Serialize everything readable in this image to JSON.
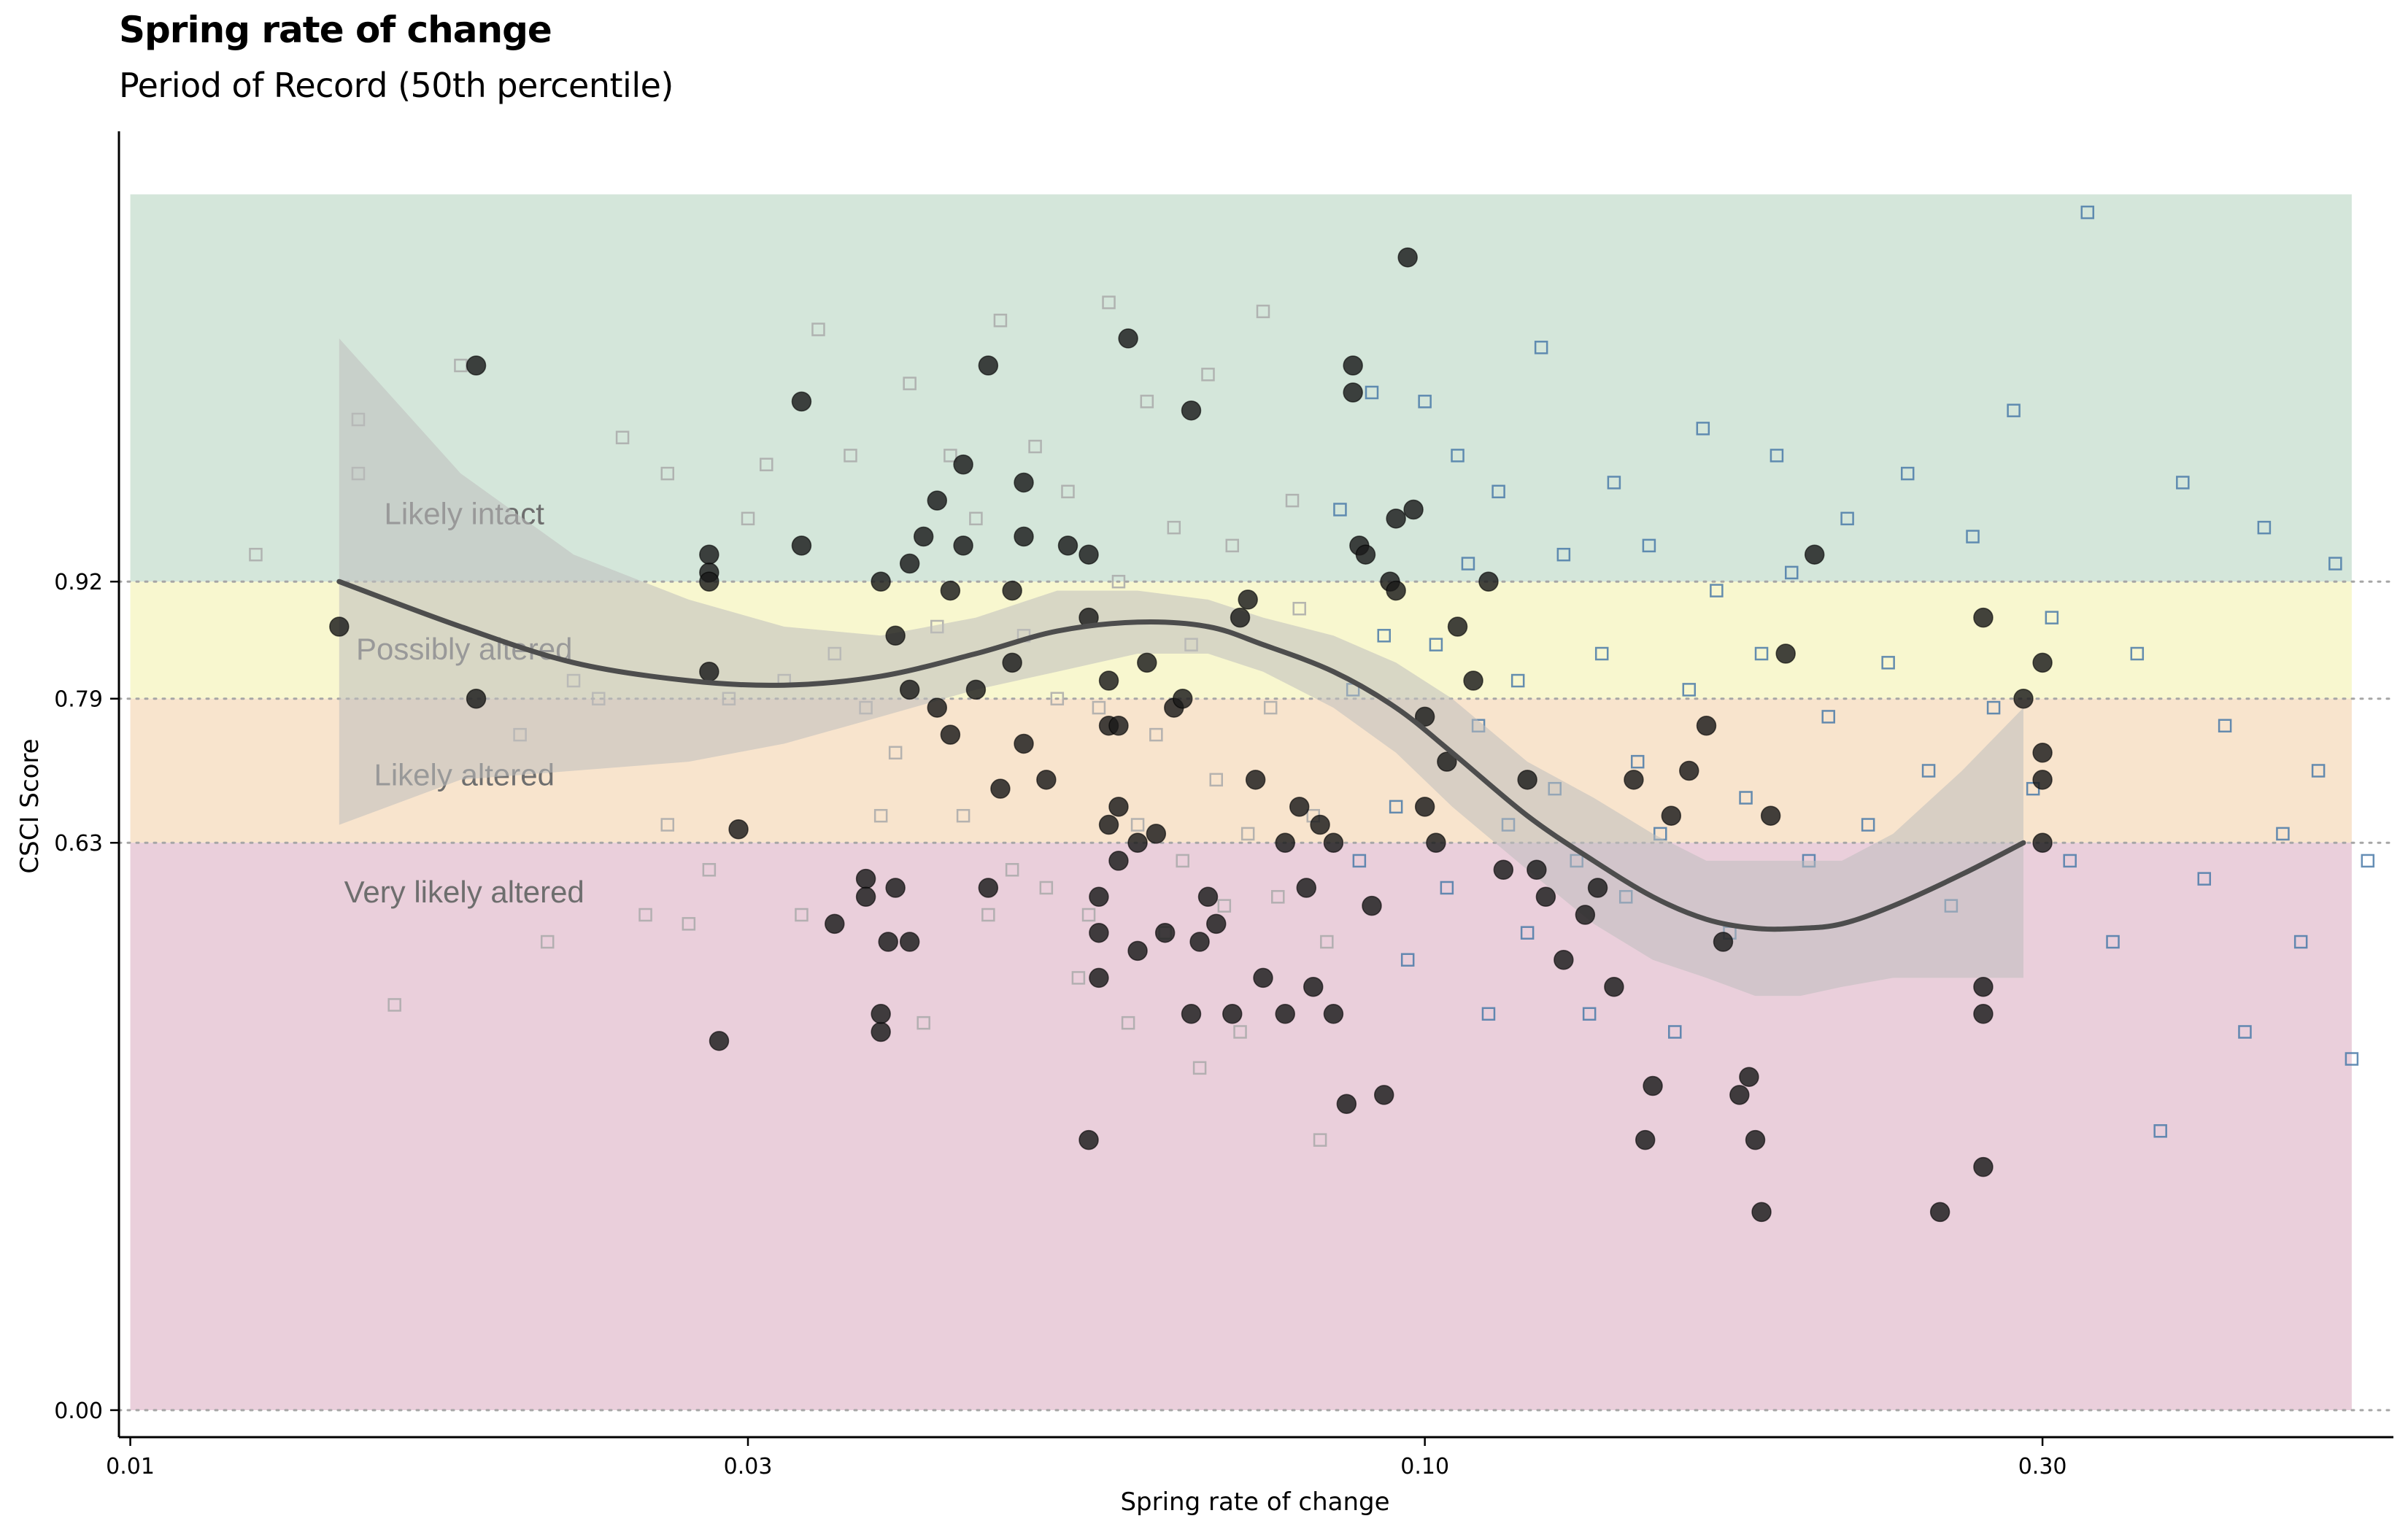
{
  "chart_data": {
    "type": "scatter",
    "title": "Spring rate of change",
    "subtitle": "Period of Record (50th percentile)",
    "xlabel": "Spring rate of change",
    "ylabel": "CSCI Score",
    "x_scale": "log10",
    "xlim": [
      0.0098,
      0.56
    ],
    "ylim": [
      -0.03,
      1.42
    ],
    "x_ticks": [
      {
        "value": 0.01,
        "label": "0.01"
      },
      {
        "value": 0.03,
        "label": "0.03"
      },
      {
        "value": 0.1,
        "label": "0.10"
      },
      {
        "value": 0.3,
        "label": "0.30"
      }
    ],
    "y_ticks": [
      {
        "value": 0.0,
        "label": "0.00"
      },
      {
        "value": 0.63,
        "label": "0.63"
      },
      {
        "value": 0.79,
        "label": "0.79"
      },
      {
        "value": 0.92,
        "label": "0.92"
      }
    ],
    "bands": [
      {
        "label": "Likely intact",
        "ymin": 0.92,
        "ymax": 1.35,
        "color": "#d4e6da",
        "label_x": 0.0155,
        "label_y": 0.995
      },
      {
        "label": "Possibly altered",
        "ymin": 0.79,
        "ymax": 0.92,
        "color": "#f8f7cf",
        "label_x": 0.0155,
        "label_y": 0.845
      },
      {
        "label": "Likely altered",
        "ymin": 0.63,
        "ymax": 0.79,
        "color": "#f8e4cd",
        "label_x": 0.0155,
        "label_y": 0.705
      },
      {
        "label": "Very likely altered",
        "ymin": 0.0,
        "ymax": 0.63,
        "color": "#eacfdb",
        "label_x": 0.0155,
        "label_y": 0.575
      }
    ],
    "band_x_range": [
      0.01,
      0.52
    ],
    "threshold_lines": [
      0.0,
      0.63,
      0.79,
      0.92
    ],
    "colors": {
      "point_fill": "#1a1a1a",
      "smooth_line": "#4d4d4d",
      "ribbon": "#bdbdbd",
      "square_grey": "#a9a9a9",
      "square_blue": "#4a7aa8",
      "threshold": "#a6a6a6"
    },
    "smooth": {
      "x": [
        0.0145,
        0.018,
        0.022,
        0.027,
        0.032,
        0.038,
        0.045,
        0.052,
        0.06,
        0.068,
        0.075,
        0.085,
        0.095,
        0.105,
        0.12,
        0.135,
        0.15,
        0.165,
        0.18,
        0.195,
        0.21,
        0.23,
        0.26,
        0.29
      ],
      "y": [
        0.92,
        0.87,
        0.83,
        0.81,
        0.805,
        0.815,
        0.84,
        0.865,
        0.875,
        0.87,
        0.85,
        0.82,
        0.78,
        0.73,
        0.66,
        0.61,
        0.57,
        0.545,
        0.535,
        0.535,
        0.54,
        0.56,
        0.595,
        0.63
      ],
      "lower": [
        0.65,
        0.7,
        0.71,
        0.72,
        0.74,
        0.77,
        0.8,
        0.82,
        0.84,
        0.84,
        0.82,
        0.78,
        0.73,
        0.67,
        0.6,
        0.54,
        0.5,
        0.48,
        0.46,
        0.46,
        0.47,
        0.48,
        0.48,
        0.48
      ],
      "upper": [
        1.19,
        1.04,
        0.95,
        0.9,
        0.87,
        0.86,
        0.88,
        0.91,
        0.91,
        0.9,
        0.88,
        0.86,
        0.83,
        0.79,
        0.72,
        0.68,
        0.64,
        0.61,
        0.61,
        0.61,
        0.61,
        0.64,
        0.71,
        0.78
      ]
    },
    "series": [
      {
        "name": "",
        "marker": "circle",
        "points": [
          [
            0.0145,
            0.87
          ],
          [
            0.0185,
            1.16
          ],
          [
            0.0185,
            0.79
          ],
          [
            0.028,
            0.95
          ],
          [
            0.028,
            0.93
          ],
          [
            0.028,
            0.92
          ],
          [
            0.028,
            0.82
          ],
          [
            0.0295,
            0.645
          ],
          [
            0.0285,
            0.41
          ],
          [
            0.033,
            1.12
          ],
          [
            0.033,
            0.96
          ],
          [
            0.035,
            0.54
          ],
          [
            0.037,
            0.59
          ],
          [
            0.037,
            0.57
          ],
          [
            0.038,
            0.42
          ],
          [
            0.038,
            0.44
          ],
          [
            0.038,
            0.92
          ],
          [
            0.0385,
            0.52
          ],
          [
            0.039,
            0.86
          ],
          [
            0.039,
            0.58
          ],
          [
            0.04,
            0.94
          ],
          [
            0.04,
            0.8
          ],
          [
            0.04,
            0.52
          ],
          [
            0.041,
            0.97
          ],
          [
            0.042,
            1.01
          ],
          [
            0.042,
            0.78
          ],
          [
            0.043,
            0.91
          ],
          [
            0.043,
            0.75
          ],
          [
            0.044,
            1.05
          ],
          [
            0.044,
            0.96
          ],
          [
            0.045,
            0.8
          ],
          [
            0.046,
            1.16
          ],
          [
            0.046,
            0.58
          ],
          [
            0.047,
            0.69
          ],
          [
            0.048,
            0.91
          ],
          [
            0.048,
            0.83
          ],
          [
            0.049,
            0.97
          ],
          [
            0.049,
            1.03
          ],
          [
            0.049,
            0.74
          ],
          [
            0.051,
            0.7
          ],
          [
            0.053,
            0.96
          ],
          [
            0.055,
            0.95
          ],
          [
            0.055,
            0.88
          ],
          [
            0.055,
            0.3
          ],
          [
            0.056,
            0.57
          ],
          [
            0.056,
            0.53
          ],
          [
            0.056,
            0.48
          ],
          [
            0.057,
            0.65
          ],
          [
            0.057,
            0.76
          ],
          [
            0.057,
            0.81
          ],
          [
            0.058,
            0.67
          ],
          [
            0.058,
            0.61
          ],
          [
            0.058,
            0.76
          ],
          [
            0.059,
            1.19
          ],
          [
            0.06,
            0.63
          ],
          [
            0.06,
            0.51
          ],
          [
            0.061,
            0.83
          ],
          [
            0.062,
            0.64
          ],
          [
            0.063,
            0.53
          ],
          [
            0.064,
            0.78
          ],
          [
            0.065,
            0.79
          ],
          [
            0.066,
            1.11
          ],
          [
            0.066,
            0.44
          ],
          [
            0.067,
            0.52
          ],
          [
            0.068,
            0.57
          ],
          [
            0.069,
            0.54
          ],
          [
            0.071,
            0.44
          ],
          [
            0.072,
            0.88
          ],
          [
            0.073,
            0.9
          ],
          [
            0.074,
            0.7
          ],
          [
            0.075,
            0.48
          ],
          [
            0.078,
            0.63
          ],
          [
            0.078,
            0.44
          ],
          [
            0.08,
            0.67
          ],
          [
            0.081,
            0.58
          ],
          [
            0.082,
            0.47
          ],
          [
            0.083,
            0.65
          ],
          [
            0.085,
            0.44
          ],
          [
            0.085,
            0.63
          ],
          [
            0.087,
            0.34
          ],
          [
            0.088,
            1.16
          ],
          [
            0.088,
            1.13
          ],
          [
            0.089,
            0.96
          ],
          [
            0.09,
            0.95
          ],
          [
            0.091,
            0.56
          ],
          [
            0.093,
            0.35
          ],
          [
            0.094,
            0.92
          ],
          [
            0.095,
            0.91
          ],
          [
            0.095,
            0.99
          ],
          [
            0.097,
            1.28
          ],
          [
            0.098,
            1.0
          ],
          [
            0.1,
            0.77
          ],
          [
            0.1,
            0.67
          ],
          [
            0.102,
            0.63
          ],
          [
            0.104,
            0.72
          ],
          [
            0.106,
            0.87
          ],
          [
            0.109,
            0.81
          ],
          [
            0.112,
            0.92
          ],
          [
            0.115,
            0.6
          ],
          [
            0.12,
            0.7
          ],
          [
            0.122,
            0.6
          ],
          [
            0.124,
            0.57
          ],
          [
            0.128,
            0.5
          ],
          [
            0.133,
            0.55
          ],
          [
            0.136,
            0.58
          ],
          [
            0.14,
            0.47
          ],
          [
            0.145,
            0.7
          ],
          [
            0.148,
            0.3
          ],
          [
            0.15,
            0.36
          ],
          [
            0.155,
            0.66
          ],
          [
            0.16,
            0.71
          ],
          [
            0.165,
            0.76
          ],
          [
            0.17,
            0.52
          ],
          [
            0.175,
            0.35
          ],
          [
            0.178,
            0.37
          ],
          [
            0.18,
            0.3
          ],
          [
            0.182,
            0.22
          ],
          [
            0.185,
            0.66
          ],
          [
            0.19,
            0.84
          ],
          [
            0.2,
            0.95
          ],
          [
            0.25,
            0.22
          ],
          [
            0.27,
            0.88
          ],
          [
            0.27,
            0.44
          ],
          [
            0.27,
            0.47
          ],
          [
            0.27,
            0.27
          ],
          [
            0.29,
            0.79
          ],
          [
            0.3,
            0.83
          ],
          [
            0.3,
            0.73
          ],
          [
            0.3,
            0.7
          ],
          [
            0.3,
            0.63
          ]
        ]
      },
      {
        "name": "",
        "marker": "square",
        "points": [
          [
            0.0125,
            0.95
          ],
          [
            0.015,
            1.1
          ],
          [
            0.015,
            1.04
          ],
          [
            0.016,
            0.45
          ],
          [
            0.018,
            1.16
          ],
          [
            0.02,
            0.75
          ],
          [
            0.021,
            0.52
          ],
          [
            0.022,
            0.81
          ],
          [
            0.023,
            0.79
          ],
          [
            0.024,
            1.08
          ],
          [
            0.025,
            0.55
          ],
          [
            0.026,
            0.65
          ],
          [
            0.026,
            1.04
          ],
          [
            0.027,
            0.54
          ],
          [
            0.028,
            0.6
          ],
          [
            0.029,
            0.79
          ],
          [
            0.03,
            0.99
          ],
          [
            0.031,
            1.05
          ],
          [
            0.032,
            0.81
          ],
          [
            0.033,
            0.55
          ],
          [
            0.034,
            1.2
          ],
          [
            0.035,
            0.84
          ],
          [
            0.036,
            1.06
          ],
          [
            0.037,
            0.78
          ],
          [
            0.038,
            0.66
          ],
          [
            0.039,
            0.73
          ],
          [
            0.04,
            1.14
          ],
          [
            0.041,
            0.43
          ],
          [
            0.042,
            0.87
          ],
          [
            0.043,
            1.06
          ],
          [
            0.044,
            0.66
          ],
          [
            0.045,
            0.99
          ],
          [
            0.046,
            0.55
          ],
          [
            0.047,
            1.21
          ],
          [
            0.048,
            0.6
          ],
          [
            0.049,
            0.86
          ],
          [
            0.05,
            1.07
          ],
          [
            0.051,
            0.58
          ],
          [
            0.052,
            0.79
          ],
          [
            0.053,
            1.02
          ],
          [
            0.054,
            0.48
          ],
          [
            0.055,
            0.55
          ],
          [
            0.056,
            0.78
          ],
          [
            0.057,
            1.23
          ],
          [
            0.058,
            0.92
          ],
          [
            0.059,
            0.43
          ],
          [
            0.06,
            0.65
          ],
          [
            0.061,
            1.12
          ],
          [
            0.062,
            0.75
          ],
          [
            0.063,
            0.53
          ],
          [
            0.064,
            0.98
          ],
          [
            0.065,
            0.61
          ],
          [
            0.066,
            0.85
          ],
          [
            0.067,
            0.38
          ],
          [
            0.068,
            1.15
          ],
          [
            0.069,
            0.7
          ],
          [
            0.07,
            0.56
          ],
          [
            0.071,
            0.96
          ],
          [
            0.072,
            0.42
          ],
          [
            0.073,
            0.64
          ],
          [
            0.075,
            1.22
          ],
          [
            0.076,
            0.78
          ],
          [
            0.077,
            0.57
          ],
          [
            0.079,
            1.01
          ],
          [
            0.08,
            0.89
          ],
          [
            0.082,
            0.66
          ],
          [
            0.083,
            0.3
          ],
          [
            0.084,
            0.52
          ],
          [
            0.086,
            1.0
          ],
          [
            0.088,
            0.8
          ],
          [
            0.089,
            0.61
          ],
          [
            0.091,
            1.13
          ],
          [
            0.093,
            0.86
          ],
          [
            0.095,
            0.67
          ],
          [
            0.097,
            0.5
          ],
          [
            0.1,
            1.12
          ],
          [
            0.102,
            0.85
          ],
          [
            0.104,
            0.58
          ],
          [
            0.106,
            1.06
          ],
          [
            0.108,
            0.94
          ],
          [
            0.11,
            0.76
          ],
          [
            0.112,
            0.44
          ],
          [
            0.114,
            1.02
          ],
          [
            0.116,
            0.65
          ],
          [
            0.118,
            0.81
          ],
          [
            0.12,
            0.53
          ],
          [
            0.123,
            1.18
          ],
          [
            0.126,
            0.69
          ],
          [
            0.128,
            0.95
          ],
          [
            0.131,
            0.61
          ],
          [
            0.134,
            0.44
          ],
          [
            0.137,
            0.84
          ],
          [
            0.14,
            1.03
          ],
          [
            0.143,
            0.57
          ],
          [
            0.146,
            0.72
          ],
          [
            0.149,
            0.96
          ],
          [
            0.152,
            0.64
          ],
          [
            0.156,
            0.42
          ],
          [
            0.16,
            0.8
          ],
          [
            0.164,
            1.09
          ],
          [
            0.168,
            0.91
          ],
          [
            0.172,
            0.53
          ],
          [
            0.177,
            0.68
          ],
          [
            0.182,
            0.84
          ],
          [
            0.187,
            1.06
          ],
          [
            0.192,
            0.93
          ],
          [
            0.198,
            0.61
          ],
          [
            0.205,
            0.77
          ],
          [
            0.212,
            0.99
          ],
          [
            0.22,
            0.65
          ],
          [
            0.228,
            0.83
          ],
          [
            0.236,
            1.04
          ],
          [
            0.245,
            0.71
          ],
          [
            0.255,
            0.56
          ],
          [
            0.265,
            0.97
          ],
          [
            0.275,
            0.78
          ],
          [
            0.285,
            1.11
          ],
          [
            0.295,
            0.69
          ],
          [
            0.305,
            0.88
          ],
          [
            0.315,
            0.61
          ],
          [
            0.325,
            1.33
          ],
          [
            0.34,
            0.52
          ],
          [
            0.355,
            0.84
          ],
          [
            0.37,
            0.31
          ],
          [
            0.385,
            1.03
          ],
          [
            0.4,
            0.59
          ],
          [
            0.415,
            0.76
          ],
          [
            0.43,
            0.42
          ],
          [
            0.445,
            0.98
          ],
          [
            0.46,
            0.64
          ],
          [
            0.475,
            0.52
          ],
          [
            0.49,
            0.71
          ],
          [
            0.505,
            0.94
          ],
          [
            0.52,
            0.39
          ],
          [
            0.535,
            0.61
          ]
        ]
      }
    ]
  }
}
